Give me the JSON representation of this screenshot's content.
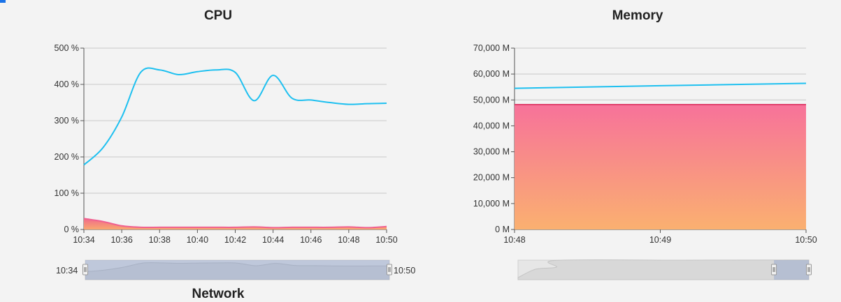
{
  "corner_color": "#1a73e8",
  "charts": {
    "cpu": {
      "title": "CPU"
    },
    "memory": {
      "title": "Memory"
    },
    "network": {
      "title": "Network"
    }
  },
  "chart_data": [
    {
      "type": "area",
      "title": "CPU",
      "x_ticks": [
        "10:34",
        "10:36",
        "10:38",
        "10:40",
        "10:42",
        "10:44",
        "10:46",
        "10:48",
        "10:50"
      ],
      "y_ticks": [
        "0 %",
        "100 %",
        "200 %",
        "300 %",
        "400 %",
        "500 %"
      ],
      "ylim": [
        0,
        500
      ],
      "xlim": [
        0,
        16
      ],
      "grid": true,
      "series": [
        {
          "kind": "line",
          "color": "#1ec0f0",
          "points": [
            [
              0,
              178
            ],
            [
              1,
              225
            ],
            [
              2,
              310
            ],
            [
              3,
              433
            ],
            [
              4,
              440
            ],
            [
              5,
              427
            ],
            [
              6,
              435
            ],
            [
              7,
              440
            ],
            [
              8,
              433
            ],
            [
              9,
              355
            ],
            [
              10,
              425
            ],
            [
              11,
              362
            ],
            [
              12,
              357
            ],
            [
              13,
              350
            ],
            [
              14,
              345
            ],
            [
              15,
              347
            ],
            [
              16,
              348
            ]
          ]
        },
        {
          "kind": "area",
          "color": "#f06090",
          "fill_top": "#f06b8b",
          "fill_bottom": "#f9a86f",
          "points": [
            [
              0,
              30
            ],
            [
              1,
              22
            ],
            [
              2,
              10
            ],
            [
              3,
              6
            ],
            [
              4,
              6
            ],
            [
              5,
              6
            ],
            [
              6,
              6
            ],
            [
              7,
              6
            ],
            [
              8,
              6
            ],
            [
              9,
              7
            ],
            [
              10,
              5
            ],
            [
              11,
              6
            ],
            [
              12,
              6
            ],
            [
              13,
              6
            ],
            [
              14,
              7
            ],
            [
              15,
              5
            ],
            [
              16,
              8
            ]
          ]
        }
      ],
      "navigator": {
        "start_label": "10:34",
        "end_label": "10:50",
        "selection": [
          0,
          1
        ]
      }
    },
    {
      "type": "area",
      "title": "Memory",
      "x_ticks": [
        "10:48",
        "10:49",
        "10:50"
      ],
      "y_ticks": [
        "0 M",
        "10,000 M",
        "20,000 M",
        "30,000 M",
        "40,000 M",
        "50,000 M",
        "60,000 M",
        "70,000 M"
      ],
      "ylim": [
        0,
        70000
      ],
      "xlim": [
        0,
        2
      ],
      "grid": true,
      "series": [
        {
          "kind": "line",
          "color": "#1ec0f0",
          "points": [
            [
              0,
              54500
            ],
            [
              1,
              55500
            ],
            [
              2,
              56400
            ]
          ]
        },
        {
          "kind": "area",
          "color": "#e0406c",
          "fill_top": "#f7729a",
          "fill_bottom": "#fab070",
          "points": [
            [
              0,
              48200
            ],
            [
              2,
              48200
            ]
          ]
        }
      ],
      "navigator": {
        "selection": [
          0.88,
          1
        ]
      }
    }
  ]
}
